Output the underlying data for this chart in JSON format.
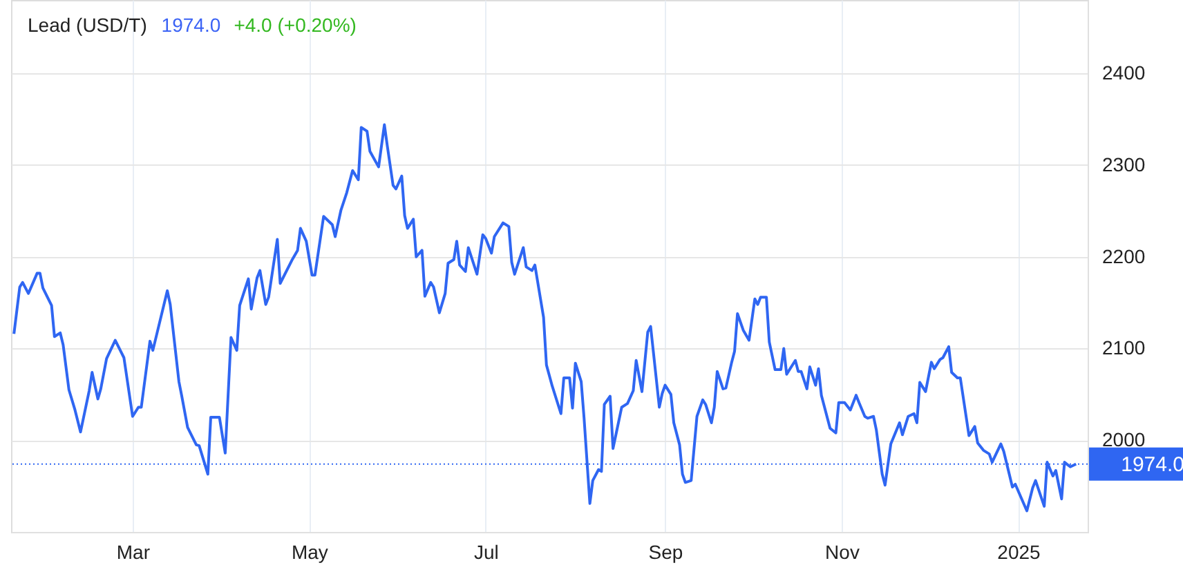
{
  "chart_data": {
    "type": "line",
    "title": "Lead (USD/T)",
    "annotations": [
      "1974.0",
      "+4.0 (+0.20%)"
    ],
    "x": [
      "2024-01-20",
      "2024-01-22",
      "2024-01-23",
      "2024-01-25",
      "2024-01-28",
      "2024-01-29",
      "2024-01-30",
      "2024-02-02",
      "2024-02-03",
      "2024-02-05",
      "2024-02-06",
      "2024-02-08",
      "2024-02-10",
      "2024-02-12",
      "2024-02-15",
      "2024-02-16",
      "2024-02-18",
      "2024-02-19",
      "2024-02-21",
      "2024-02-24",
      "2024-02-27",
      "2024-03-01",
      "2024-03-03",
      "2024-03-04",
      "2024-03-07",
      "2024-03-08",
      "2024-03-13",
      "2024-03-14",
      "2024-03-17",
      "2024-03-18",
      "2024-03-20",
      "2024-03-23",
      "2024-03-24",
      "2024-03-27",
      "2024-03-28",
      "2024-03-31",
      "2024-04-02",
      "2024-04-04",
      "2024-04-06",
      "2024-04-07",
      "2024-04-10",
      "2024-04-11",
      "2024-04-13",
      "2024-04-14",
      "2024-04-16",
      "2024-04-17",
      "2024-04-20",
      "2024-04-21",
      "2024-04-25",
      "2024-04-27",
      "2024-04-28",
      "2024-04-30",
      "2024-05-02",
      "2024-05-03",
      "2024-05-06",
      "2024-05-09",
      "2024-05-10",
      "2024-05-12",
      "2024-05-14",
      "2024-05-16",
      "2024-05-18",
      "2024-05-19",
      "2024-05-21",
      "2024-05-22",
      "2024-05-25",
      "2024-05-27",
      "2024-05-28",
      "2024-05-30",
      "2024-05-31",
      "2024-06-02",
      "2024-06-03",
      "2024-06-04",
      "2024-06-06",
      "2024-06-07",
      "2024-06-09",
      "2024-06-10",
      "2024-06-12",
      "2024-06-13",
      "2024-06-15",
      "2024-06-17",
      "2024-06-18",
      "2024-06-20",
      "2024-06-21",
      "2024-06-22",
      "2024-06-24",
      "2024-06-25",
      "2024-06-28",
      "2024-06-30",
      "2024-07-01",
      "2024-07-03",
      "2024-07-04",
      "2024-07-07",
      "2024-07-09",
      "2024-07-10",
      "2024-07-11",
      "2024-07-14",
      "2024-07-15",
      "2024-07-17",
      "2024-07-18",
      "2024-07-21",
      "2024-07-22",
      "2024-07-24",
      "2024-07-27",
      "2024-07-28",
      "2024-07-30",
      "2024-07-31",
      "2024-08-01",
      "2024-08-03",
      "2024-08-04",
      "2024-08-06",
      "2024-08-07",
      "2024-08-09",
      "2024-08-10",
      "2024-08-11",
      "2024-08-13",
      "2024-08-14",
      "2024-08-15",
      "2024-08-17",
      "2024-08-19",
      "2024-08-21",
      "2024-08-22",
      "2024-08-24",
      "2024-08-26",
      "2024-08-27",
      "2024-08-30",
      "2024-08-31",
      "2024-09-01",
      "2024-09-03",
      "2024-09-04",
      "2024-09-06",
      "2024-09-07",
      "2024-09-08",
      "2024-09-10",
      "2024-09-12",
      "2024-09-14",
      "2024-09-15",
      "2024-09-17",
      "2024-09-18",
      "2024-09-19",
      "2024-09-21",
      "2024-09-22",
      "2024-09-24",
      "2024-09-25",
      "2024-09-26",
      "2024-09-28",
      "2024-09-30",
      "2024-10-02",
      "2024-10-03",
      "2024-10-04",
      "2024-10-06",
      "2024-10-07",
      "2024-10-09",
      "2024-10-11",
      "2024-10-12",
      "2024-10-13",
      "2024-10-16",
      "2024-10-17",
      "2024-10-18",
      "2024-10-20",
      "2024-10-21",
      "2024-10-23",
      "2024-10-24",
      "2024-10-25",
      "2024-10-28",
      "2024-10-30",
      "2024-10-31",
      "2024-11-02",
      "2024-11-04",
      "2024-11-06",
      "2024-11-07",
      "2024-11-09",
      "2024-11-10",
      "2024-11-12",
      "2024-11-13",
      "2024-11-15",
      "2024-11-16",
      "2024-11-18",
      "2024-11-21",
      "2024-11-22",
      "2024-11-24",
      "2024-11-26",
      "2024-11-27",
      "2024-11-28",
      "2024-11-30",
      "2024-12-02",
      "2024-12-03",
      "2024-12-05",
      "2024-12-06",
      "2024-12-08",
      "2024-12-09",
      "2024-12-11",
      "2024-12-12",
      "2024-12-15",
      "2024-12-17",
      "2024-12-18",
      "2024-12-20",
      "2024-12-22",
      "2024-12-23",
      "2024-12-26",
      "2024-12-27",
      "2024-12-30",
      "2024-12-31",
      "2025-01-04",
      "2025-01-06",
      "2025-01-07",
      "2025-01-10",
      "2025-01-11",
      "2025-01-13",
      "2025-01-14",
      "2025-01-16",
      "2025-01-17",
      "2025-01-19",
      "2025-01-21"
    ],
    "series": [
      {
        "color": "#2f66f2",
        "values": [
          2116,
          2167,
          2172,
          2160,
          2182,
          2182,
          2166,
          2147,
          2113,
          2117,
          2104,
          2055,
          2034,
          2009,
          2054,
          2074,
          2045,
          2056,
          2089,
          2109,
          2090,
          2026,
          2036,
          2036,
          2108,
          2098,
          2163,
          2148,
          2064,
          2048,
          2014,
          1995,
          1994,
          1963,
          2025,
          2025,
          1986,
          2112,
          2098,
          2147,
          2176,
          2143,
          2177,
          2185,
          2148,
          2156,
          2219,
          2171,
          2196,
          2207,
          2231,
          2217,
          2180,
          2180,
          2244,
          2235,
          2222,
          2251,
          2270,
          2294,
          2284,
          2341,
          2337,
          2315,
          2298,
          2344,
          2321,
          2278,
          2274,
          2288,
          2245,
          2231,
          2241,
          2200,
          2207,
          2157,
          2172,
          2167,
          2139,
          2160,
          2193,
          2197,
          2217,
          2191,
          2184,
          2210,
          2181,
          2224,
          2220,
          2204,
          2222,
          2237,
          2233,
          2194,
          2181,
          2210,
          2189,
          2185,
          2191,
          2134,
          2082,
          2059,
          2029,
          2068,
          2068,
          2035,
          2084,
          2064,
          2024,
          1931,
          1956,
          1968,
          1966,
          2039,
          2048,
          1991,
          2006,
          2036,
          2040,
          2054,
          2087,
          2053,
          2118,
          2124,
          2036,
          2051,
          2060,
          2050,
          2019,
          1995,
          1963,
          1954,
          1956,
          2026,
          2044,
          2039,
          2019,
          2036,
          2075,
          2056,
          2057,
          2085,
          2097,
          2138,
          2120,
          2109,
          2154,
          2148,
          2156,
          2156,
          2107,
          2077,
          2077,
          2100,
          2072,
          2087,
          2075,
          2075,
          2056,
          2080,
          2060,
          2078,
          2049,
          2013,
          2008,
          2041,
          2041,
          2033,
          2049,
          2041,
          2026,
          2024,
          2026,
          2011,
          1963,
          1951,
          1996,
          2019,
          2006,
          2026,
          2029,
          2019,
          2063,
          2053,
          2085,
          2078,
          2088,
          2090,
          2102,
          2074,
          2068,
          2068,
          2005,
          2015,
          1997,
          1989,
          1985,
          1976,
          1996,
          1988,
          1949,
          1952,
          1923,
          1948,
          1956,
          1928,
          1976,
          1961,
          1967,
          1936,
          1976,
          1971,
          1974
        ]
      }
    ],
    "xlim": [
      "2024-01-19",
      "2025-01-25"
    ],
    "xticks": [
      {
        "value": "2024-03-01",
        "label": "Mar"
      },
      {
        "value": "2024-05-01",
        "label": "May"
      },
      {
        "value": "2024-07-01",
        "label": "Jul"
      },
      {
        "value": "2024-09-01",
        "label": "Sep"
      },
      {
        "value": "2024-11-01",
        "label": "Nov"
      },
      {
        "value": "2025-01-01",
        "label": "2025"
      }
    ],
    "ylim": [
      1900,
      2480
    ],
    "yticks": [
      2000,
      2100,
      2200,
      2300,
      2400
    ],
    "ref_lines": [
      {
        "axis": "y",
        "value": 1974,
        "label": "1974.0",
        "color": "#2f66f2",
        "line_style": "dotted"
      }
    ],
    "grid": true,
    "marker": "none",
    "line_style": "solid"
  }
}
